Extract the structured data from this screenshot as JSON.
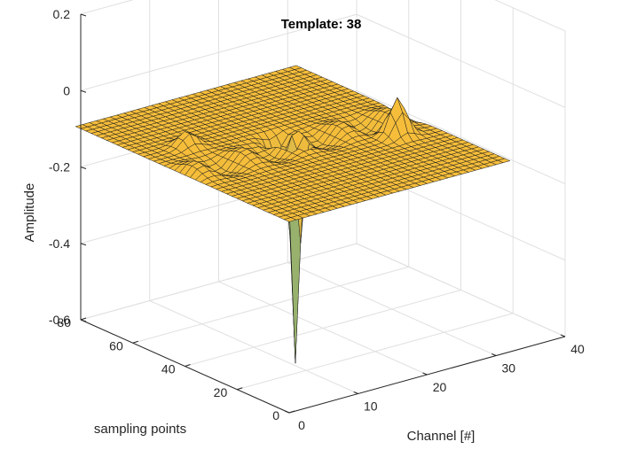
{
  "chart_data": {
    "type": "surface",
    "title": "Template: 38",
    "xlabel": "Channel [#]",
    "ylabel": "sampling points",
    "zlabel": "Amplitude",
    "xlim": [
      0,
      40
    ],
    "ylim": [
      0,
      80
    ],
    "zlim": [
      -0.6,
      0.2
    ],
    "xticks": [
      "0",
      "10",
      "20",
      "30",
      "40"
    ],
    "yticks": [
      "0",
      "20",
      "40",
      "60",
      "80"
    ],
    "zticks": [
      "-0.6",
      "-0.4",
      "-0.2",
      "0",
      "0.2"
    ],
    "grid": true,
    "surface": {
      "x_range": [
        0,
        32
      ],
      "y_range": [
        0,
        82
      ],
      "baseline": -0.1,
      "colormap_low": "#1f4fd1",
      "colormap_mid": "#1aa3b5",
      "colormap_high": "#f5bd3a",
      "features": [
        {
          "kind": "trough",
          "x": 16,
          "y": 40,
          "z": -0.7
        },
        {
          "kind": "trough",
          "x": 16,
          "y": 46,
          "z": -0.2
        },
        {
          "kind": "peak",
          "x": 17,
          "y": 44,
          "z": -0.05
        },
        {
          "kind": "peak",
          "x": 27,
          "y": 30,
          "z": 0.0
        },
        {
          "kind": "peak",
          "x": 6,
          "y": 55,
          "z": -0.06
        }
      ]
    }
  }
}
